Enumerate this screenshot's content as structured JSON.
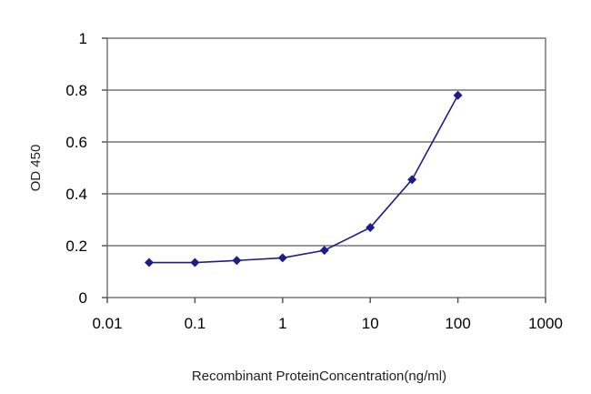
{
  "chart_data": {
    "type": "line",
    "title": "",
    "xlabel": "Recombinant ProteinConcentration(ng/ml)",
    "ylabel": "OD 450",
    "x_scale": "log",
    "xlim": [
      0.01,
      1000
    ],
    "ylim": [
      0,
      1
    ],
    "x_ticks": [
      0.01,
      0.1,
      1,
      10,
      100,
      1000
    ],
    "x_tick_labels": [
      "0.01",
      "0.1",
      "1",
      "10",
      "100",
      "1000"
    ],
    "y_ticks": [
      0,
      0.2,
      0.4,
      0.6,
      0.8,
      1
    ],
    "y_tick_labels": [
      "0",
      "0.2",
      "0.4",
      "0.6",
      "0.8",
      "1"
    ],
    "grid": "horizontal",
    "legend": "none",
    "series": [
      {
        "color": "#1c1c8c",
        "marker": "diamond",
        "x": [
          0.03,
          0.1,
          0.3,
          1,
          3,
          10,
          30,
          100
        ],
        "y": [
          0.135,
          0.135,
          0.143,
          0.153,
          0.182,
          0.27,
          0.455,
          0.78
        ]
      }
    ]
  }
}
